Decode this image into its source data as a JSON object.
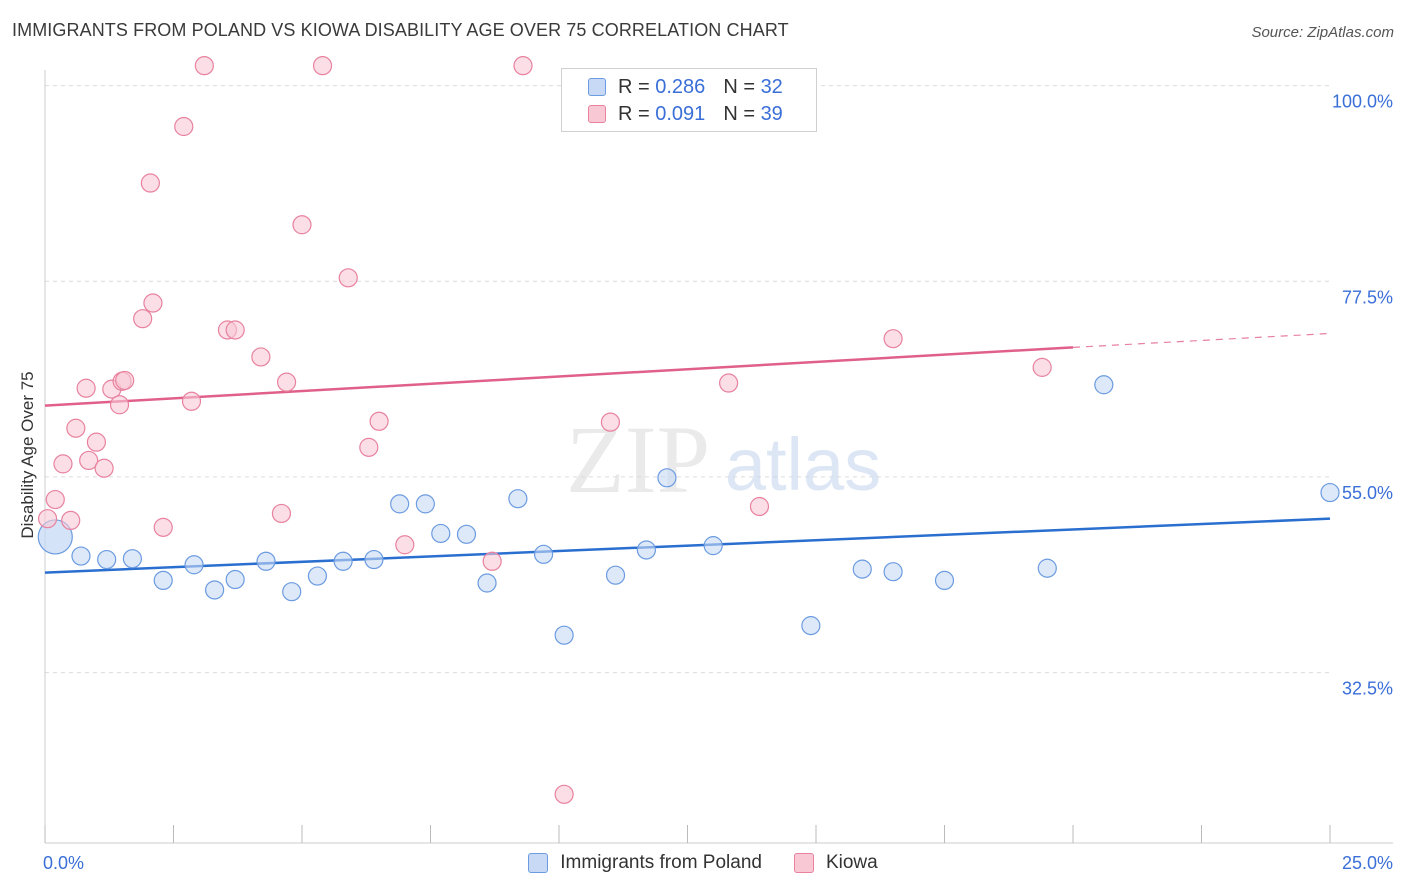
{
  "title": "IMMIGRANTS FROM POLAND VS KIOWA DISABILITY AGE OVER 75 CORRELATION CHART",
  "source": "Source: ZipAtlas.com",
  "watermark": {
    "zip": "ZIP",
    "atlas": "atlas"
  },
  "legend": {
    "series1": {
      "r_label": "R = ",
      "r_value": "0.286",
      "n_label": "N = ",
      "n_value": "32"
    },
    "series2": {
      "r_label": "R = ",
      "r_value": "0.091",
      "n_label": "N = ",
      "n_value": "39"
    }
  },
  "chart_data": {
    "type": "scatter",
    "title": "IMMIGRANTS FROM POLAND VS KIOWA DISABILITY AGE OVER 75 CORRELATION CHART",
    "xlabel": "",
    "ylabel": "Disability Age Over 75",
    "xlim": [
      0,
      25
    ],
    "ylim": [
      12.9,
      101.8
    ],
    "x_tick_labels": [
      "0.0%",
      "25.0%"
    ],
    "y_tick_values": [
      32.5,
      55.0,
      77.5,
      100.0
    ],
    "y_tick_labels": [
      "32.5%",
      "55.0%",
      "77.5%",
      "100.0%"
    ],
    "grid": true,
    "series": [
      {
        "name": "Immigrants from Poland",
        "color": "#6b9be0",
        "fill": "#c7d9f5",
        "line_color": "#2a6fd0",
        "trend": {
          "x0": 0,
          "y0": 44.0,
          "x1": 25,
          "y1": 50.2
        },
        "points": [
          [
            0.2,
            48.1
          ],
          [
            0.7,
            45.9
          ],
          [
            1.2,
            45.5
          ],
          [
            1.7,
            45.6
          ],
          [
            2.3,
            43.1
          ],
          [
            2.9,
            44.9
          ],
          [
            3.3,
            42.0
          ],
          [
            3.7,
            43.2
          ],
          [
            4.3,
            45.3
          ],
          [
            4.8,
            41.8
          ],
          [
            5.3,
            43.6
          ],
          [
            5.8,
            45.3
          ],
          [
            6.4,
            45.5
          ],
          [
            6.9,
            51.9
          ],
          [
            7.4,
            51.9
          ],
          [
            7.7,
            48.5
          ],
          [
            8.2,
            48.4
          ],
          [
            8.6,
            42.8
          ],
          [
            9.2,
            52.5
          ],
          [
            9.7,
            46.1
          ],
          [
            10.1,
            36.8
          ],
          [
            11.1,
            43.7
          ],
          [
            11.7,
            46.6
          ],
          [
            12.1,
            54.9
          ],
          [
            13.0,
            47.1
          ],
          [
            14.9,
            37.9
          ],
          [
            15.9,
            44.4
          ],
          [
            16.5,
            44.1
          ],
          [
            17.5,
            43.1
          ],
          [
            19.5,
            44.5
          ],
          [
            20.6,
            65.6
          ],
          [
            25.0,
            53.2
          ]
        ]
      },
      {
        "name": "Kiowa",
        "color": "#e8829e",
        "fill": "#f8c8d5",
        "line_color": "#e0608a",
        "trend": {
          "x0": 0,
          "y0": 63.2,
          "x1": 20.0,
          "y1": 69.9
        },
        "trend_dashed": {
          "x0": 20.0,
          "y0": 69.9,
          "x1": 25,
          "y1": 71.5
        },
        "points": [
          [
            0.05,
            50.2
          ],
          [
            0.2,
            52.4
          ],
          [
            0.35,
            56.5
          ],
          [
            0.5,
            50.0
          ],
          [
            0.6,
            60.6
          ],
          [
            0.8,
            65.2
          ],
          [
            0.85,
            56.9
          ],
          [
            1.0,
            59.0
          ],
          [
            1.15,
            56.0
          ],
          [
            1.3,
            65.1
          ],
          [
            1.45,
            63.3
          ],
          [
            1.5,
            66.0
          ],
          [
            1.55,
            66.1
          ],
          [
            1.9,
            73.2
          ],
          [
            2.05,
            88.8
          ],
          [
            2.1,
            75.0
          ],
          [
            2.3,
            49.2
          ],
          [
            2.7,
            95.3
          ],
          [
            2.85,
            63.7
          ],
          [
            3.1,
            102.3
          ],
          [
            3.55,
            71.9
          ],
          [
            3.7,
            71.9
          ],
          [
            4.2,
            68.8
          ],
          [
            4.6,
            50.8
          ],
          [
            4.7,
            65.9
          ],
          [
            5.0,
            84.0
          ],
          [
            5.4,
            102.3
          ],
          [
            5.9,
            77.9
          ],
          [
            6.3,
            58.4
          ],
          [
            6.5,
            61.4
          ],
          [
            7.0,
            47.2
          ],
          [
            8.7,
            45.3
          ],
          [
            9.3,
            102.3
          ],
          [
            10.1,
            18.5
          ],
          [
            11.0,
            61.3
          ],
          [
            13.3,
            65.8
          ],
          [
            13.9,
            51.6
          ],
          [
            16.5,
            70.9
          ],
          [
            19.4,
            67.6
          ]
        ]
      }
    ]
  }
}
